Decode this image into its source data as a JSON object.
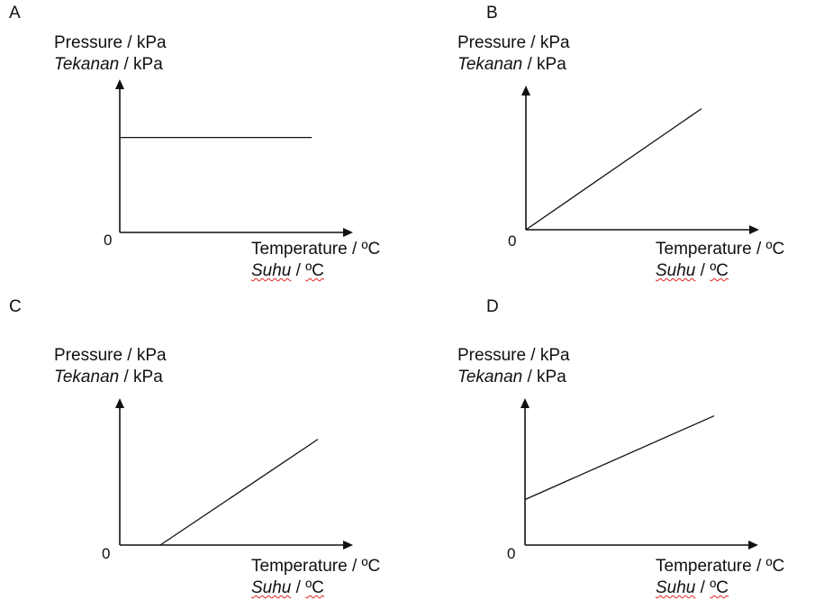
{
  "graphs": [
    {
      "option": "A",
      "y_label_en": "Pressure / kPa",
      "y_label_ms_word": "Tekanan",
      "y_label_ms_unit": " / kPa",
      "x_label_en": "Temperature / ºC",
      "x_label_ms_word": "Suhu",
      "x_label_ms_sep": " / ",
      "x_label_ms_unit": "ºC",
      "origin": "0",
      "line": {
        "type": "horizontal",
        "start_p": 0.62,
        "end_p": 0.62,
        "start_t": 0.0,
        "end_t": 0.82
      }
    },
    {
      "option": "B",
      "y_label_en": "Pressure / kPa",
      "y_label_ms_word": "Tekanan",
      "y_label_ms_unit": " / kPa",
      "x_label_en": "Temperature / ºC",
      "x_label_ms_word": "Suhu",
      "x_label_ms_sep": " / ",
      "x_label_ms_unit": "ºC",
      "origin": "0",
      "line": {
        "type": "through_origin",
        "start_p": 0.0,
        "end_p": 0.84,
        "start_t": 0.0,
        "end_t": 0.75
      }
    },
    {
      "option": "C",
      "y_label_en": "Pressure / kPa",
      "y_label_ms_word": "Tekanan",
      "y_label_ms_unit": " / kPa",
      "x_label_en": "Temperature / ºC",
      "x_label_ms_word": "Suhu",
      "x_label_ms_sep": " / ",
      "x_label_ms_unit": "ºC",
      "origin": "0",
      "line": {
        "type": "positive_x_intercept",
        "start_p": 0.0,
        "end_p": 0.72,
        "start_t": 0.18,
        "end_t": 0.88
      }
    },
    {
      "option": "D",
      "y_label_en": "Pressure / kPa",
      "y_label_ms_word": "Tekanan",
      "y_label_ms_unit": " / kPa",
      "x_label_en": "Temperature / ºC",
      "x_label_ms_word": "Suhu",
      "x_label_ms_sep": " / ",
      "x_label_ms_unit": "ºC",
      "origin": "0",
      "line": {
        "type": "positive_y_intercept",
        "start_p": 0.31,
        "end_p": 0.88,
        "start_t": 0.0,
        "end_t": 0.84
      }
    }
  ]
}
